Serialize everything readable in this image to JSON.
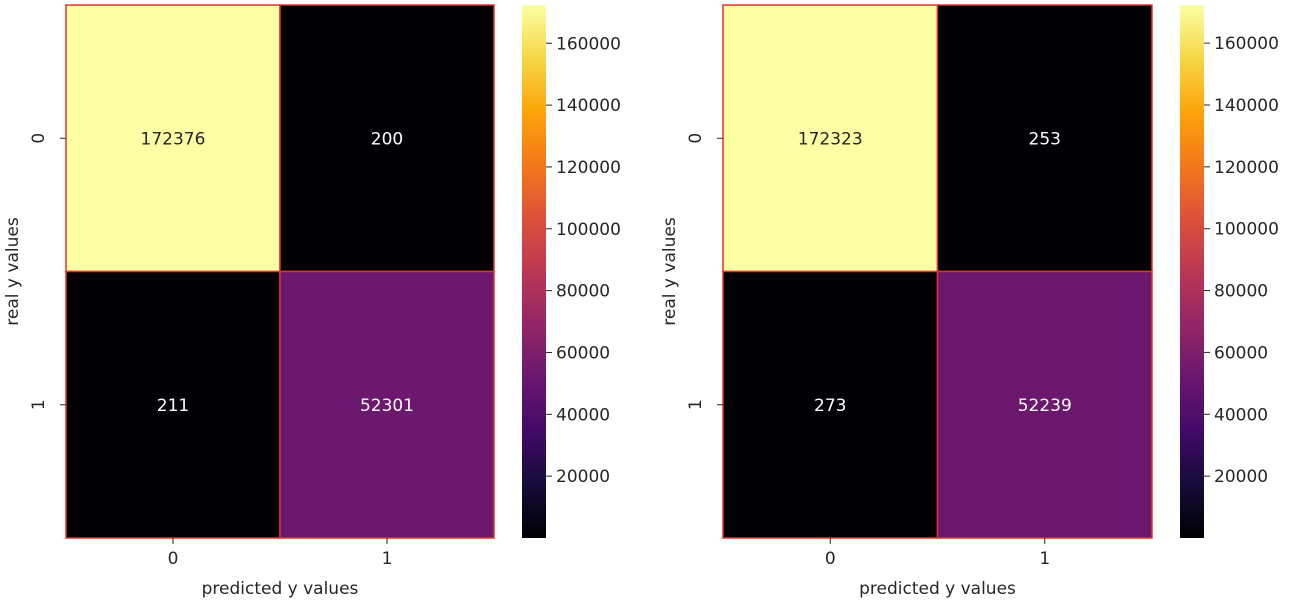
{
  "chart_data": [
    {
      "type": "heatmap",
      "title": "",
      "xlabel": "predicted y values",
      "ylabel": "real y values",
      "x_categories": [
        "0",
        "1"
      ],
      "y_categories": [
        "0",
        "1"
      ],
      "values": [
        [
          172376,
          200
        ],
        [
          211,
          52301
        ]
      ],
      "annotations": [
        [
          "172376",
          "200"
        ],
        [
          "211",
          "52301"
        ]
      ],
      "colormap": "inferno",
      "cell_border_color": "#e8312c",
      "colorbar": {
        "range": [
          0,
          172376
        ],
        "ticks": [
          "20000",
          "40000",
          "60000",
          "80000",
          "100000",
          "120000",
          "140000",
          "160000"
        ]
      }
    },
    {
      "type": "heatmap",
      "title": "",
      "xlabel": "predicted y values",
      "ylabel": "real y values",
      "x_categories": [
        "0",
        "1"
      ],
      "y_categories": [
        "0",
        "1"
      ],
      "values": [
        [
          172323,
          253
        ],
        [
          273,
          52239
        ]
      ],
      "annotations": [
        [
          "172323",
          "253"
        ],
        [
          "273",
          "52239"
        ]
      ],
      "colormap": "inferno",
      "cell_border_color": "#e8312c",
      "colorbar": {
        "range": [
          0,
          172323
        ],
        "ticks": [
          "20000",
          "40000",
          "60000",
          "80000",
          "100000",
          "120000",
          "140000",
          "160000"
        ]
      }
    }
  ]
}
